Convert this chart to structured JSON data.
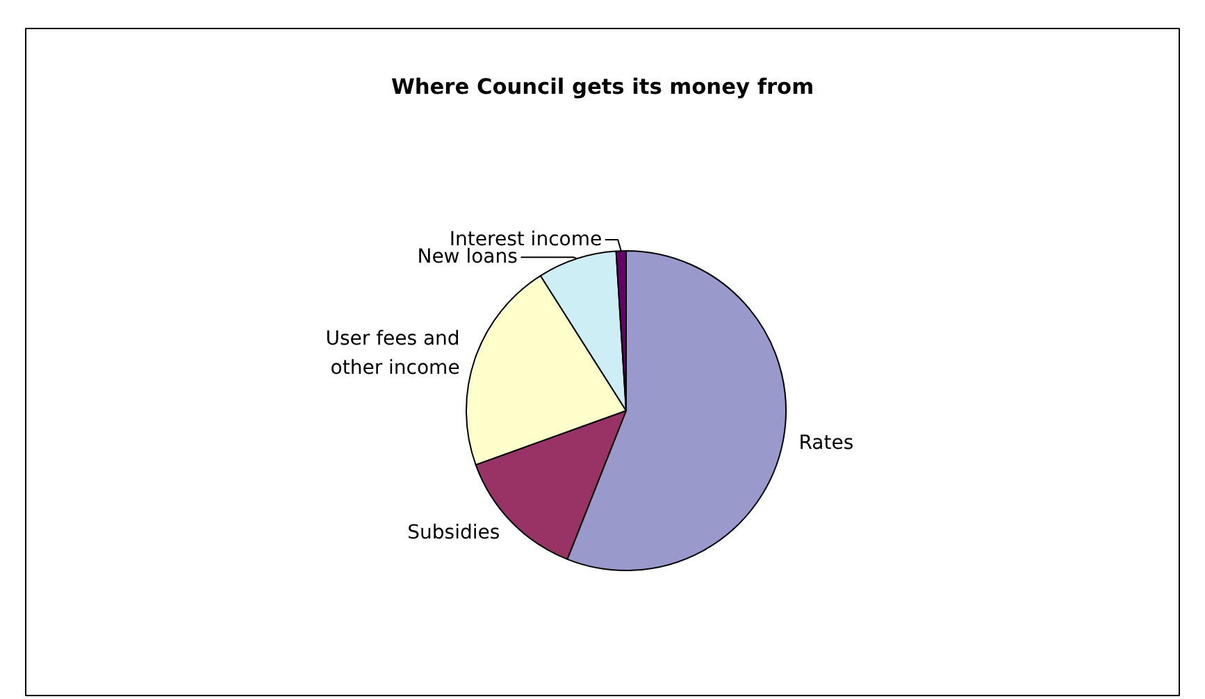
{
  "chart_data": {
    "type": "pie",
    "title": "Where Council gets its money from",
    "categories": [
      "Rates",
      "Subsidies",
      "User fees and\nother income",
      "New loans",
      "Interest income"
    ],
    "values": [
      56,
      13.5,
      21.5,
      8,
      1
    ],
    "colors": [
      "#9999cc",
      "#993366",
      "#ffffcc",
      "#cceef4",
      "#660066"
    ]
  }
}
